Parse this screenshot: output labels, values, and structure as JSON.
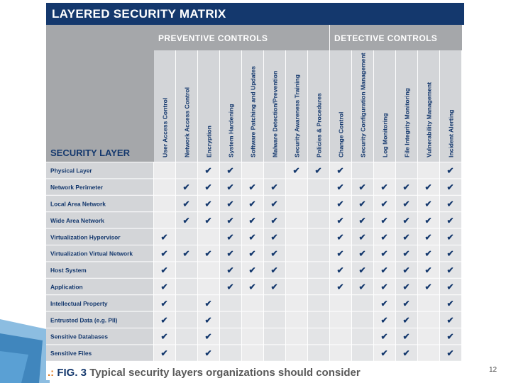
{
  "title": "LAYERED SECURITY MATRIX",
  "layer_header": "SECURITY LAYER",
  "groups": [
    {
      "label": "PREVENTIVE CONTROLS",
      "count": 8
    },
    {
      "label": "DETECTIVE CONTROLS",
      "count": 6
    }
  ],
  "columns": [
    "User Access Control",
    "Network Access Control",
    "Encryption",
    "System Hardening",
    "Software Patching and Updates",
    "Malware Detection/Prevention",
    "Security Awareness Training",
    "Policies & Procedures",
    "Change Control",
    "Security Configuration Management",
    "Log Monitoring",
    "File Integrity Monitoring",
    "Vulnerability Management",
    "Incident Alerting"
  ],
  "rows": [
    {
      "label": "Physical Layer",
      "checks": [
        0,
        0,
        1,
        1,
        0,
        0,
        1,
        1,
        1,
        0,
        0,
        0,
        0,
        1
      ]
    },
    {
      "label": "Network Perimeter",
      "checks": [
        0,
        1,
        1,
        1,
        1,
        1,
        0,
        0,
        1,
        1,
        1,
        1,
        1,
        1
      ]
    },
    {
      "label": "Local Area Network",
      "checks": [
        0,
        1,
        1,
        1,
        1,
        1,
        0,
        0,
        1,
        1,
        1,
        1,
        1,
        1
      ]
    },
    {
      "label": "Wide Area Network",
      "checks": [
        0,
        1,
        1,
        1,
        1,
        1,
        0,
        0,
        1,
        1,
        1,
        1,
        1,
        1
      ]
    },
    {
      "label": "Virtualization Hypervisor",
      "checks": [
        1,
        0,
        0,
        1,
        1,
        1,
        0,
        0,
        1,
        1,
        1,
        1,
        1,
        1
      ]
    },
    {
      "label": "Virtualization Virtual Network",
      "checks": [
        1,
        1,
        1,
        1,
        1,
        1,
        0,
        0,
        1,
        1,
        1,
        1,
        1,
        1
      ]
    },
    {
      "label": "Host System",
      "checks": [
        1,
        0,
        0,
        1,
        1,
        1,
        0,
        0,
        1,
        1,
        1,
        1,
        1,
        1
      ]
    },
    {
      "label": "Application",
      "checks": [
        1,
        0,
        0,
        1,
        1,
        1,
        0,
        0,
        1,
        1,
        1,
        1,
        1,
        1
      ]
    },
    {
      "label": "Intellectual Property",
      "checks": [
        1,
        0,
        1,
        0,
        0,
        0,
        0,
        0,
        0,
        0,
        1,
        1,
        0,
        1
      ]
    },
    {
      "label": "Entrusted Data (e.g. PII)",
      "checks": [
        1,
        0,
        1,
        0,
        0,
        0,
        0,
        0,
        0,
        0,
        1,
        1,
        0,
        1
      ]
    },
    {
      "label": "Sensitive Databases",
      "checks": [
        1,
        0,
        1,
        0,
        0,
        0,
        0,
        0,
        0,
        0,
        1,
        1,
        0,
        1
      ]
    },
    {
      "label": "Sensitive Files",
      "checks": [
        1,
        0,
        1,
        0,
        0,
        0,
        0,
        0,
        0,
        0,
        1,
        1,
        0,
        1
      ]
    }
  ],
  "check_glyph": "✔",
  "caption": {
    "dots": ".:",
    "fig": "FIG. 3",
    "text": "Typical security layers organizations should consider"
  },
  "slide_number": "12",
  "colors": {
    "navy": "#14386d",
    "gray_header": "#a5a7aa",
    "label_bg": "#d3d5d8",
    "cell": "#ececed",
    "cell_alt": "#e3e4e6",
    "accent": "#e07a1f",
    "deco": "#2e86c8"
  }
}
